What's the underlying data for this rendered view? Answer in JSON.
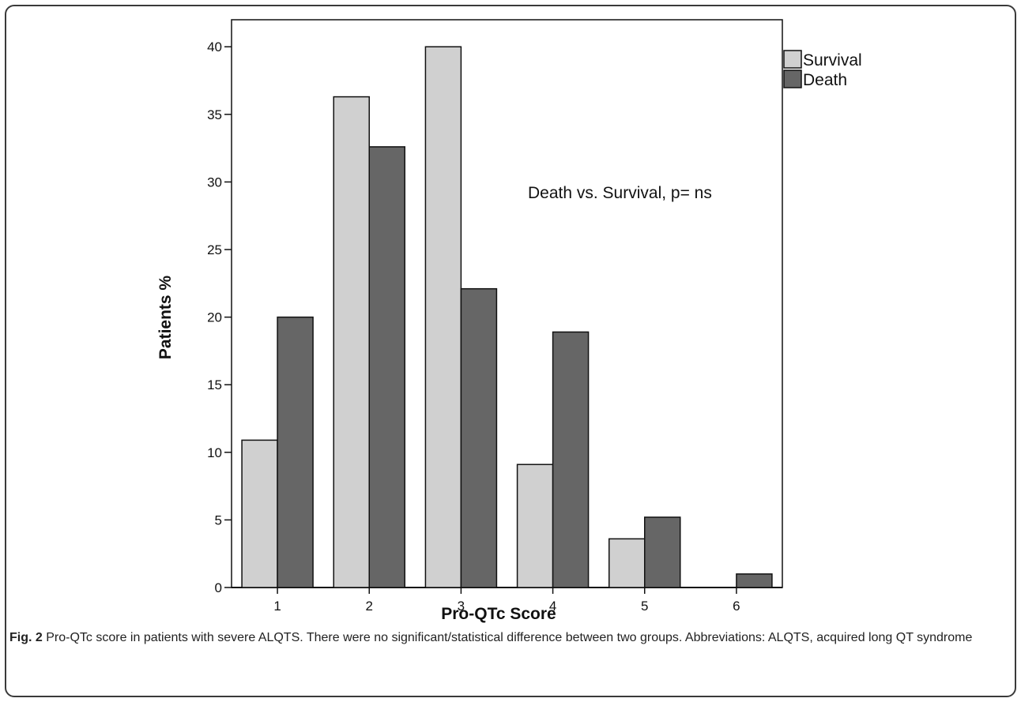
{
  "chart_data": {
    "type": "bar",
    "xlabel": "Pro-QTc Score",
    "ylabel": "Patients %",
    "categories": [
      "1",
      "2",
      "3",
      "4",
      "5",
      "6"
    ],
    "ylim": [
      0,
      42
    ],
    "yticks": [
      0,
      5,
      10,
      15,
      20,
      25,
      30,
      35,
      40
    ],
    "series": [
      {
        "name": "Survival",
        "color": "#d0d0d0",
        "values": [
          10.9,
          36.3,
          40.0,
          9.1,
          3.6,
          0.0
        ]
      },
      {
        "name": "Death",
        "color": "#666666",
        "values": [
          20.0,
          32.6,
          22.1,
          18.9,
          5.2,
          1.0
        ]
      }
    ],
    "annotation": "Death vs. Survival, p= ns",
    "legend_position": "top-right",
    "grid": false
  },
  "caption": {
    "label": "Fig. 2",
    "text": " Pro-QTc score in patients with severe ALQTS. There were no significant/statistical difference between two groups. Abbreviations: ALQTS, acquired long QT syndrome"
  }
}
